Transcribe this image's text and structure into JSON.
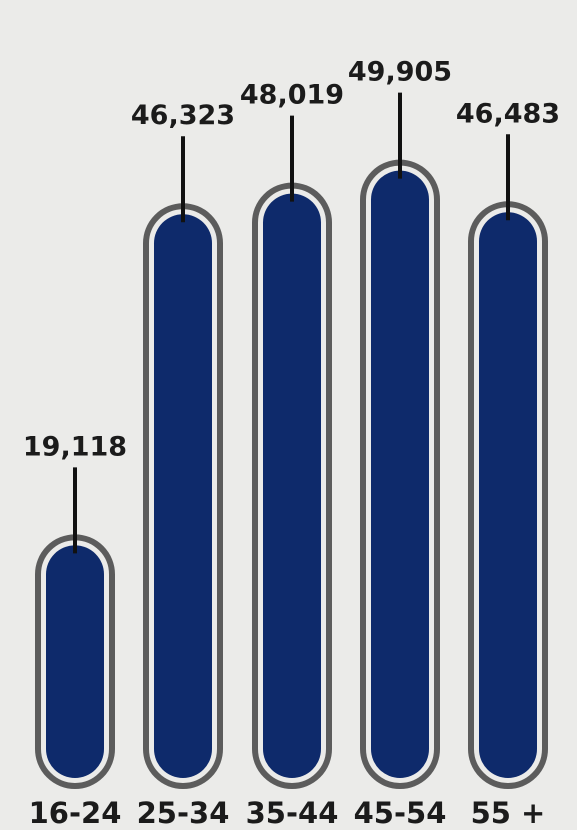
{
  "chart_data": {
    "type": "bar",
    "categories": [
      "16-24",
      "25-34",
      "35-44",
      "45-54",
      "55 +"
    ],
    "values": [
      19118,
      46323,
      48019,
      49905,
      46483
    ],
    "value_labels": [
      "19,118",
      "46,323",
      "48,019",
      "49,905",
      "46,483"
    ],
    "title": "",
    "xlabel": "",
    "ylabel": "",
    "grid": false,
    "legend": "none"
  },
  "colors": {
    "background": "#ebebe9",
    "bar_fill": "#0e2a6b",
    "bar_outline": "#5c5c5c",
    "leader_line": "#111111",
    "text": "#1b1b1b"
  }
}
